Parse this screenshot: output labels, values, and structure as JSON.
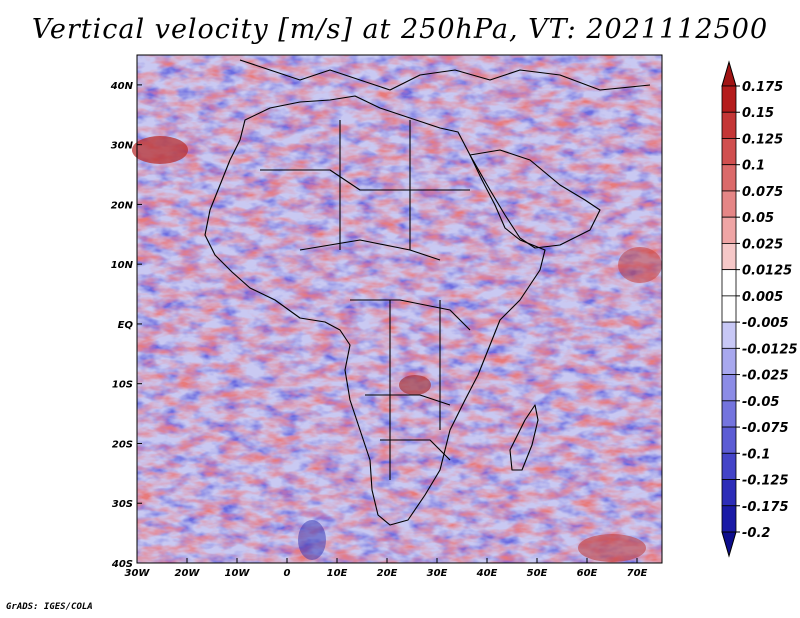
{
  "title": "Vertical velocity [m/s] at 250hPa, VT: 2021112500",
  "credit": "GrADS: IGES/COLA",
  "map": {
    "lon_range": [
      -30,
      75
    ],
    "lat_range": [
      -40,
      45
    ],
    "x_ticks": [
      "30W",
      "20W",
      "10W",
      "0",
      "10E",
      "20E",
      "30E",
      "40E",
      "50E",
      "60E",
      "70E"
    ],
    "x_tick_values": [
      -30,
      -20,
      -10,
      0,
      10,
      20,
      30,
      40,
      50,
      60,
      70
    ],
    "y_ticks": [
      "40N",
      "30N",
      "20N",
      "10N",
      "EQ",
      "10S",
      "20S",
      "30S",
      "40S"
    ],
    "y_tick_values": [
      40,
      30,
      20,
      10,
      0,
      -10,
      -20,
      -30,
      -40
    ]
  },
  "colorbar": {
    "labels": [
      "0.175",
      "0.15",
      "0.125",
      "0.1",
      "0.075",
      "0.05",
      "0.025",
      "0.0125",
      "0.005",
      "-0.005",
      "-0.0125",
      "-0.025",
      "-0.05",
      "-0.075",
      "-0.1",
      "-0.125",
      "-0.175",
      "-0.2"
    ],
    "colors": [
      "#a11414",
      "#b41c1c",
      "#c43636",
      "#d04f4f",
      "#db6a6a",
      "#e58686",
      "#efa5a5",
      "#f6c8c8",
      "#ffffff",
      "#ffffff",
      "#c8c8f6",
      "#a8a8ee",
      "#8c8ce6",
      "#7474de",
      "#5c5cd4",
      "#4444c8",
      "#2c2cb8",
      "#1a1aa6",
      "#0d0d8c"
    ]
  }
}
